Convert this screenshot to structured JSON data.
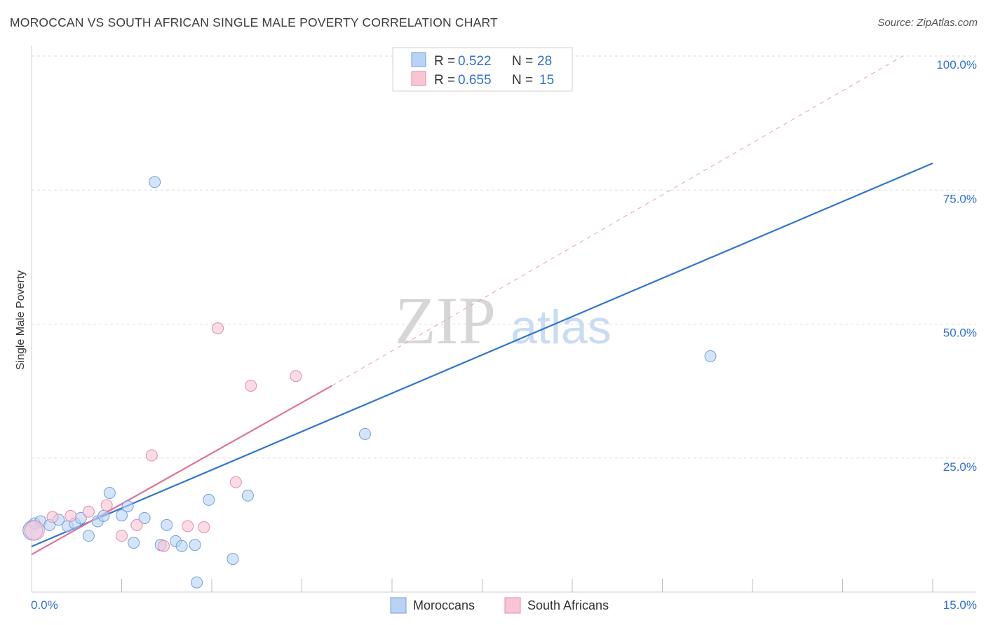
{
  "header": {
    "title": "MOROCCAN VS SOUTH AFRICAN SINGLE MALE POVERTY CORRELATION CHART",
    "source": "Source: ZipAtlas.com"
  },
  "colors": {
    "moroccans_fill": "#b9d3f5",
    "moroccans_stroke": "#6f9fdf",
    "moroccans_line": "#2f74d0",
    "south_africans_fill": "#f8c5d5",
    "south_africans_stroke": "#e88aa8",
    "south_africans_line": "#e0729a",
    "grid": "#d9d9d9",
    "tick_label": "#2f6fd6"
  },
  "legend": {
    "r_label": "R =",
    "n_label": "N =",
    "rows": [
      {
        "r": "0.522",
        "n": "28"
      },
      {
        "r": "0.655",
        "n": "15"
      }
    ]
  },
  "bottom_legend": [
    "Moroccans",
    "South Africans"
  ],
  "chart_data": {
    "type": "scatter",
    "title": "MOROCCAN VS SOUTH AFRICAN SINGLE MALE POVERTY CORRELATION CHART",
    "ylabel": "Single Male Poverty",
    "xlabel": "",
    "xlim": [
      0,
      15
    ],
    "ylim": [
      0,
      100
    ],
    "x_tick_labels": [
      "0.0%",
      "15.0%"
    ],
    "y_tick_labels": [
      "25.0%",
      "50.0%",
      "75.0%",
      "100.0%"
    ],
    "y_ticks": [
      25,
      50,
      75,
      100
    ],
    "x_minor_ticks": [
      1.5,
      3,
      4.5,
      6,
      7.5,
      9,
      10.5,
      12,
      13.5,
      15
    ],
    "watermark": [
      "ZIP",
      "atlas"
    ],
    "series": [
      {
        "name": "Moroccans",
        "r": 0.522,
        "n": 28,
        "points": [
          [
            0.05,
            12.8
          ],
          [
            0.15,
            13.2
          ],
          [
            0.3,
            12.5
          ],
          [
            0.45,
            13.5
          ],
          [
            0.6,
            12.3
          ],
          [
            0.72,
            12.8
          ],
          [
            0.82,
            13.8
          ],
          [
            0.95,
            10.5
          ],
          [
            1.1,
            13.2
          ],
          [
            1.2,
            14.2
          ],
          [
            1.3,
            18.5
          ],
          [
            1.5,
            14.3
          ],
          [
            1.6,
            16.0
          ],
          [
            1.7,
            9.2
          ],
          [
            1.88,
            13.8
          ],
          [
            2.05,
            76.5
          ],
          [
            2.15,
            8.8
          ],
          [
            2.25,
            12.5
          ],
          [
            2.4,
            9.5
          ],
          [
            2.5,
            8.6
          ],
          [
            2.72,
            8.8
          ],
          [
            2.75,
            1.8
          ],
          [
            2.95,
            17.2
          ],
          [
            3.35,
            6.2
          ],
          [
            3.6,
            18.0
          ],
          [
            5.55,
            29.5
          ],
          [
            11.3,
            44.0
          ],
          [
            0.02,
            11.5
          ]
        ],
        "trend": {
          "x0": 0,
          "y0": 8.5,
          "x1": 15,
          "y1": 80.0
        }
      },
      {
        "name": "South Africans",
        "r": 0.655,
        "n": 15,
        "points": [
          [
            0.05,
            11.5
          ],
          [
            0.35,
            14.0
          ],
          [
            0.65,
            14.2
          ],
          [
            0.95,
            15.0
          ],
          [
            1.25,
            16.2
          ],
          [
            1.5,
            10.5
          ],
          [
            1.75,
            12.5
          ],
          [
            2.0,
            25.5
          ],
          [
            2.2,
            8.6
          ],
          [
            2.6,
            12.3
          ],
          [
            2.87,
            12.1
          ],
          [
            3.1,
            49.2
          ],
          [
            3.4,
            20.5
          ],
          [
            3.65,
            38.5
          ],
          [
            4.4,
            40.3
          ]
        ],
        "trend": {
          "x0": 0,
          "y0": 7.0,
          "x1": 5.0,
          "y1": 38.5
        },
        "trend_extension": {
          "x0": 5.0,
          "y0": 38.5,
          "x1": 14.5,
          "y1": 100.0
        }
      }
    ]
  }
}
